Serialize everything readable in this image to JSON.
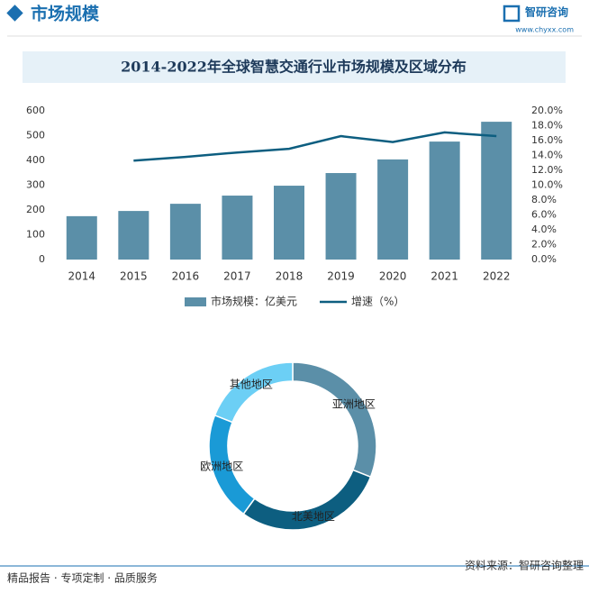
{
  "header": {
    "title": "市场规模",
    "logo": "智研咨询",
    "url": "www.chyxx.com"
  },
  "chart_data": [
    {
      "type": "bar-line",
      "title": "2014-2022年全球智慧交通行业市场规模及区域分布",
      "categories": [
        "2014",
        "2015",
        "2016",
        "2017",
        "2018",
        "2019",
        "2020",
        "2021",
        "2022"
      ],
      "series": [
        {
          "name": "市场规模：亿美元",
          "type": "bar",
          "color": "#5b8fa8",
          "values": [
            175,
            196,
            225,
            258,
            298,
            349,
            404,
            476,
            556
          ]
        },
        {
          "name": "增速（%）",
          "type": "line",
          "axis": "y2",
          "color": "#0d5e80",
          "values": [
            null,
            13.3,
            13.8,
            14.4,
            14.9,
            16.6,
            15.8,
            17.1,
            16.6
          ]
        }
      ],
      "ylim": [
        0,
        600
      ],
      "yticks": [
        0,
        100,
        200,
        300,
        400,
        500,
        600
      ],
      "y2lim": [
        0,
        20
      ],
      "y2ticks": [
        {
          "value": 0,
          "label": "0.0%"
        },
        {
          "value": 2,
          "label": "2.0%"
        },
        {
          "value": 4,
          "label": "4.0%"
        },
        {
          "value": 6,
          "label": "6.0%"
        },
        {
          "value": 8,
          "label": "8.0%"
        },
        {
          "value": 10,
          "label": "10.0%"
        },
        {
          "value": 12,
          "label": "12.0%"
        },
        {
          "value": 14,
          "label": "14.0%"
        },
        {
          "value": 16,
          "label": "16.0%"
        },
        {
          "value": 18,
          "label": "18.0%"
        },
        {
          "value": 20,
          "label": "20.0%"
        }
      ],
      "legend": "bottom"
    },
    {
      "type": "donut",
      "categories": [
        "亚洲地区",
        "北美地区",
        "欧洲地区",
        "其他地区"
      ],
      "values": [
        31,
        29,
        21,
        19
      ],
      "colors": [
        "#5b8fa8",
        "#0d5e80",
        "#1a9ad6",
        "#6ccff5"
      ]
    }
  ],
  "footer": {
    "left": "精品报告 · 专项定制 · 品质服务",
    "source": "资料来源：智研咨询整理"
  }
}
